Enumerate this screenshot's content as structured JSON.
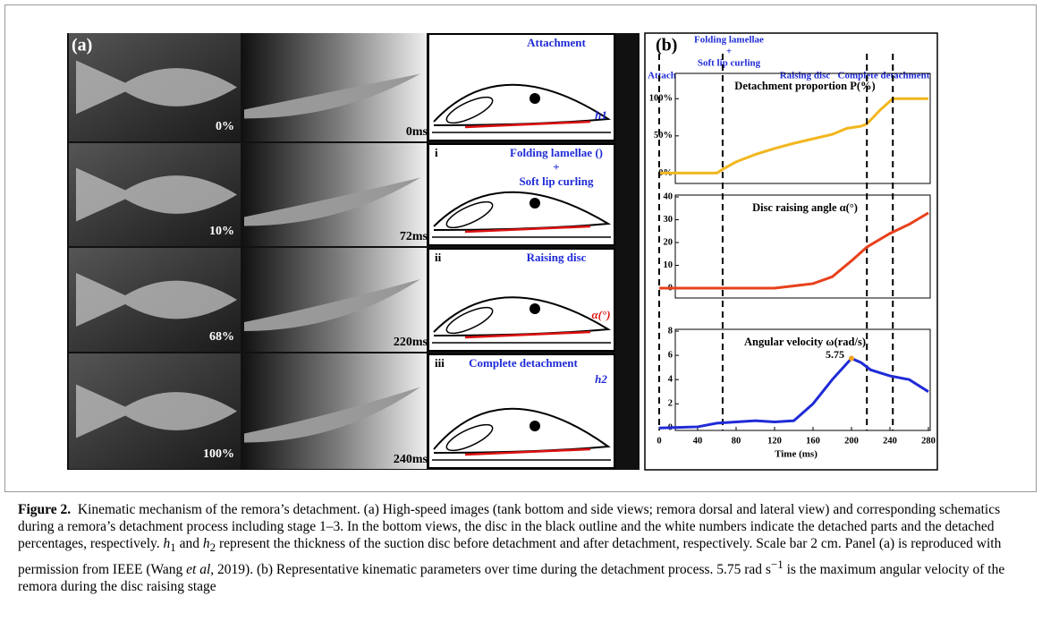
{
  "panel_a": {
    "label": "(a)",
    "percentages": [
      "0%",
      "10%",
      "68%",
      "100%"
    ],
    "times": [
      "0ms",
      "72ms",
      "220ms",
      "240ms"
    ],
    "schematics": [
      {
        "stage": "Attachment",
        "symbol": "h1"
      },
      {
        "numeral": "i",
        "stage": "Folding lamellae ()",
        "plus": "+",
        "stage2": "Soft lip curling"
      },
      {
        "numeral": "ii",
        "stage": "Raising disc",
        "symbol": "α(°)"
      },
      {
        "numeral": "iii",
        "stage": "Complete detachment",
        "symbol": "h2"
      }
    ]
  },
  "panel_b": {
    "label": "(b)",
    "stages": [
      "Attach",
      "Folding lamellae",
      "+",
      "Soft lip curling",
      "Raising disc",
      "Complete detachment"
    ]
  },
  "chart_data": [
    {
      "type": "line",
      "title": "Detachment proportion P(%)",
      "color": "#f2b71f",
      "x": [
        0,
        60,
        66,
        80,
        100,
        120,
        140,
        160,
        180,
        195,
        210,
        216,
        230,
        243,
        280
      ],
      "values": [
        0,
        0,
        5,
        15,
        25,
        33,
        40,
        46,
        52,
        60,
        63,
        66,
        85,
        100,
        100
      ],
      "xlim": [
        0,
        280
      ],
      "ylim": [
        -14,
        134
      ],
      "yticks": [
        {
          "value": 0,
          "label": "0%"
        },
        {
          "value": 50,
          "label": "50%"
        },
        {
          "value": 100,
          "label": "100%"
        }
      ],
      "vlines": [
        0,
        66,
        216,
        243
      ]
    },
    {
      "type": "line",
      "title": "Disc raising angle α(°)",
      "color": "#e8401c",
      "x": [
        0,
        60,
        120,
        140,
        160,
        180,
        200,
        216,
        240,
        260,
        280
      ],
      "values": [
        0,
        0,
        0,
        1,
        2,
        5,
        12,
        18,
        24,
        28,
        33
      ],
      "xlim": [
        0,
        280
      ],
      "ylim": [
        -4.3,
        40.8
      ],
      "yticks": [
        0,
        10,
        20,
        30,
        40
      ]
    },
    {
      "type": "line",
      "title": "Angular velocity ω(rad/s)",
      "color": "#1f2bd6",
      "x": [
        0,
        40,
        60,
        80,
        100,
        120,
        140,
        160,
        180,
        200,
        210,
        220,
        240,
        260,
        280
      ],
      "values": [
        0,
        0.1,
        0.4,
        0.5,
        0.6,
        0.5,
        0.6,
        2,
        4,
        5.75,
        5.4,
        4.8,
        4.3,
        4,
        3
      ],
      "annotation": {
        "text": "5.75",
        "index": 9
      },
      "xlim": [
        0,
        280
      ],
      "ylim": [
        -0.2,
        8.15
      ],
      "yticks": [
        0,
        2,
        4,
        6,
        8
      ],
      "xticks": [
        0,
        40,
        80,
        120,
        160,
        200,
        240,
        280
      ],
      "xlabel": "Time (ms)"
    }
  ],
  "caption": {
    "label": "Figure 2.",
    "parts": [
      "Kinematic mechanism of the remora’s detachment. (a) High-speed images (tank bottom and side views; remora dorsal and lateral view) and corresponding schematics during a remora’s detachment process including stage 1–3. In the bottom views, the disc in the black outline and the white numbers indicate the detached parts and the detached percentages, respectively. ",
      "h",
      "1",
      " and ",
      "h",
      "2",
      " represent the thickness of the suction disc before detachment and after detachment, respectively. Scale bar 2 cm. Panel (a) is reproduced with permission from IEEE (Wang ",
      "et al",
      ", 2019). (b) Representative kinematic parameters over time during the detachment process. 5.75 rad s",
      "−1",
      " is the maximum angular velocity of the remora during the disc raising stage"
    ]
  }
}
